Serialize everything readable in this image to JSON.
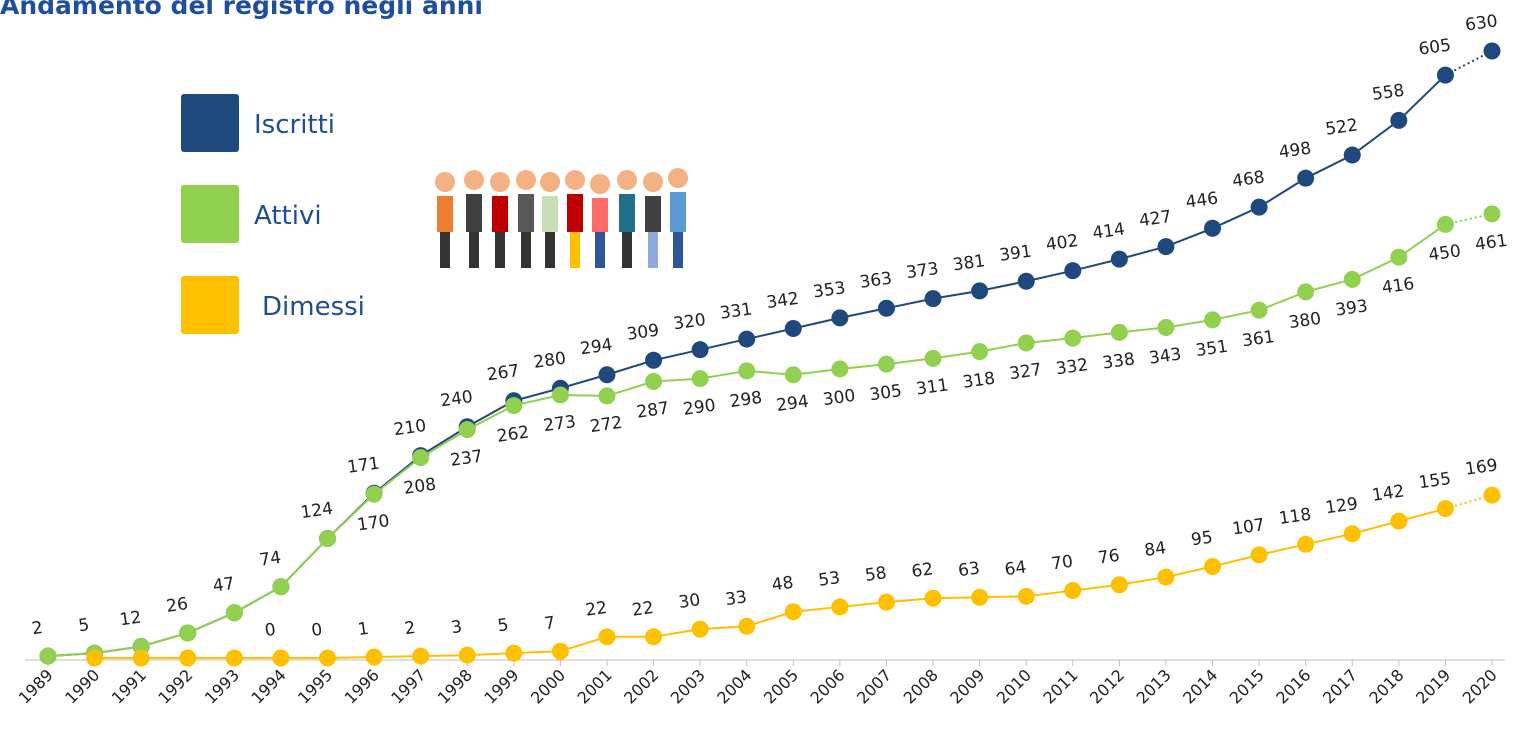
{
  "chart_data": {
    "type": "line",
    "title": "Andamento del registro negli anni",
    "categories": [
      "1989",
      "1990",
      "1991",
      "1992",
      "1993",
      "1994",
      "1995",
      "1996",
      "1997",
      "1998",
      "1999",
      "2000",
      "2001",
      "2002",
      "2003",
      "2004",
      "2005",
      "2006",
      "2007",
      "2008",
      "2009",
      "2010",
      "2011",
      "2012",
      "2013",
      "2014",
      "2015",
      "2016",
      "2017",
      "2018",
      "2019",
      "2020"
    ],
    "ylim": [
      0,
      630
    ],
    "dotted_last_segment": true,
    "series": [
      {
        "name": "Iscritti",
        "color": "#1f497d",
        "values": [
          2,
          5,
          12,
          26,
          47,
          74,
          124,
          171,
          210,
          240,
          267,
          280,
          294,
          309,
          320,
          331,
          342,
          353,
          363,
          373,
          381,
          391,
          402,
          414,
          427,
          446,
          468,
          498,
          522,
          558,
          605,
          630
        ]
      },
      {
        "name": "Attivi",
        "color": "#92d050",
        "values": [
          2,
          5,
          12,
          26,
          47,
          74,
          124,
          170,
          208,
          237,
          262,
          273,
          272,
          287,
          290,
          298,
          294,
          300,
          305,
          311,
          318,
          327,
          332,
          338,
          343,
          351,
          361,
          380,
          393,
          416,
          450,
          461
        ],
        "value_labels": [
          null,
          null,
          null,
          null,
          null,
          null,
          null,
          "170",
          "208",
          "237",
          "262",
          "273",
          "272",
          "287",
          "290",
          "298",
          "294",
          "300",
          "305",
          "311",
          "318",
          "327",
          "332",
          "338",
          "343",
          "351",
          "361",
          "380",
          "393",
          "416",
          "450",
          "461"
        ]
      },
      {
        "name": "Dimessi",
        "color": "#ffc000",
        "values": [
          null,
          0,
          0,
          0,
          0,
          0,
          0,
          1,
          2,
          3,
          5,
          7,
          22,
          22,
          30,
          33,
          48,
          53,
          58,
          62,
          63,
          64,
          70,
          76,
          84,
          95,
          107,
          118,
          129,
          142,
          155,
          169
        ],
        "value_labels": [
          null,
          null,
          null,
          null,
          null,
          "0",
          "0",
          "1",
          "2",
          "3",
          "5",
          "7",
          "22",
          "22",
          "30",
          "33",
          "48",
          "53",
          "58",
          "62",
          "63",
          "64",
          "70",
          "76",
          "84",
          "95",
          "107",
          "118",
          "129",
          "142",
          "155",
          "169"
        ]
      }
    ]
  }
}
